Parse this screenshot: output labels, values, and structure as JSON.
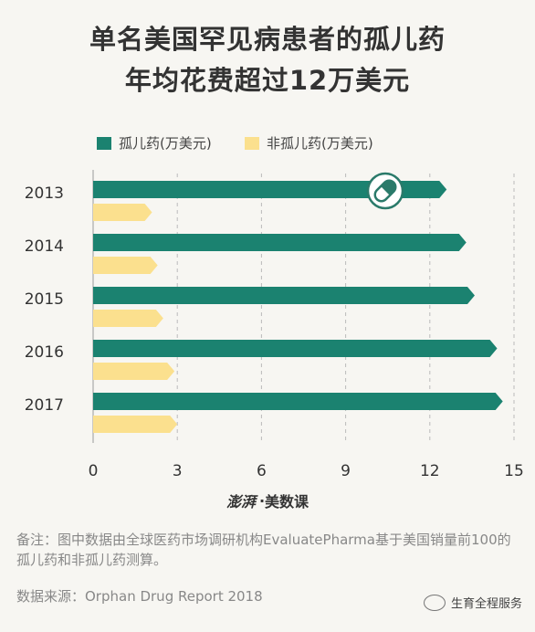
{
  "title": {
    "line1": "单名美国罕见病患者的孤儿药",
    "line2": "年均花费超过12万美元"
  },
  "colors": {
    "orphan": "#1b8270",
    "non_orphan": "#fbe08e",
    "grid": "#bbbbbb",
    "background": "#f7f6f2"
  },
  "chart_data": {
    "type": "bar",
    "orientation": "horizontal",
    "categories": [
      "2013",
      "2014",
      "2015",
      "2016",
      "2017"
    ],
    "series": [
      {
        "name": "孤儿药(万美元)",
        "values": [
          12.6,
          13.3,
          13.6,
          14.4,
          14.6
        ]
      },
      {
        "name": "非孤儿药(万美元)",
        "values": [
          2.1,
          2.3,
          2.5,
          2.9,
          3.0
        ]
      }
    ],
    "xlim": [
      0,
      15
    ],
    "xticks": [
      "0",
      "3",
      "6",
      "9",
      "12",
      "15"
    ],
    "grid": "vertical dashed",
    "legend": "top-left"
  },
  "icons": {
    "pill": "pill-icon"
  },
  "logo": {
    "mark": "澎湃",
    "dot": "·",
    "text": "美数课"
  },
  "note": "备注：图中数据由全球医药市场调研机构EvaluatePharma基于美国销量前100的孤儿药和非孤儿药测算。",
  "source": "数据来源：Orphan Drug Report 2018",
  "watermark": "生育全程服务"
}
